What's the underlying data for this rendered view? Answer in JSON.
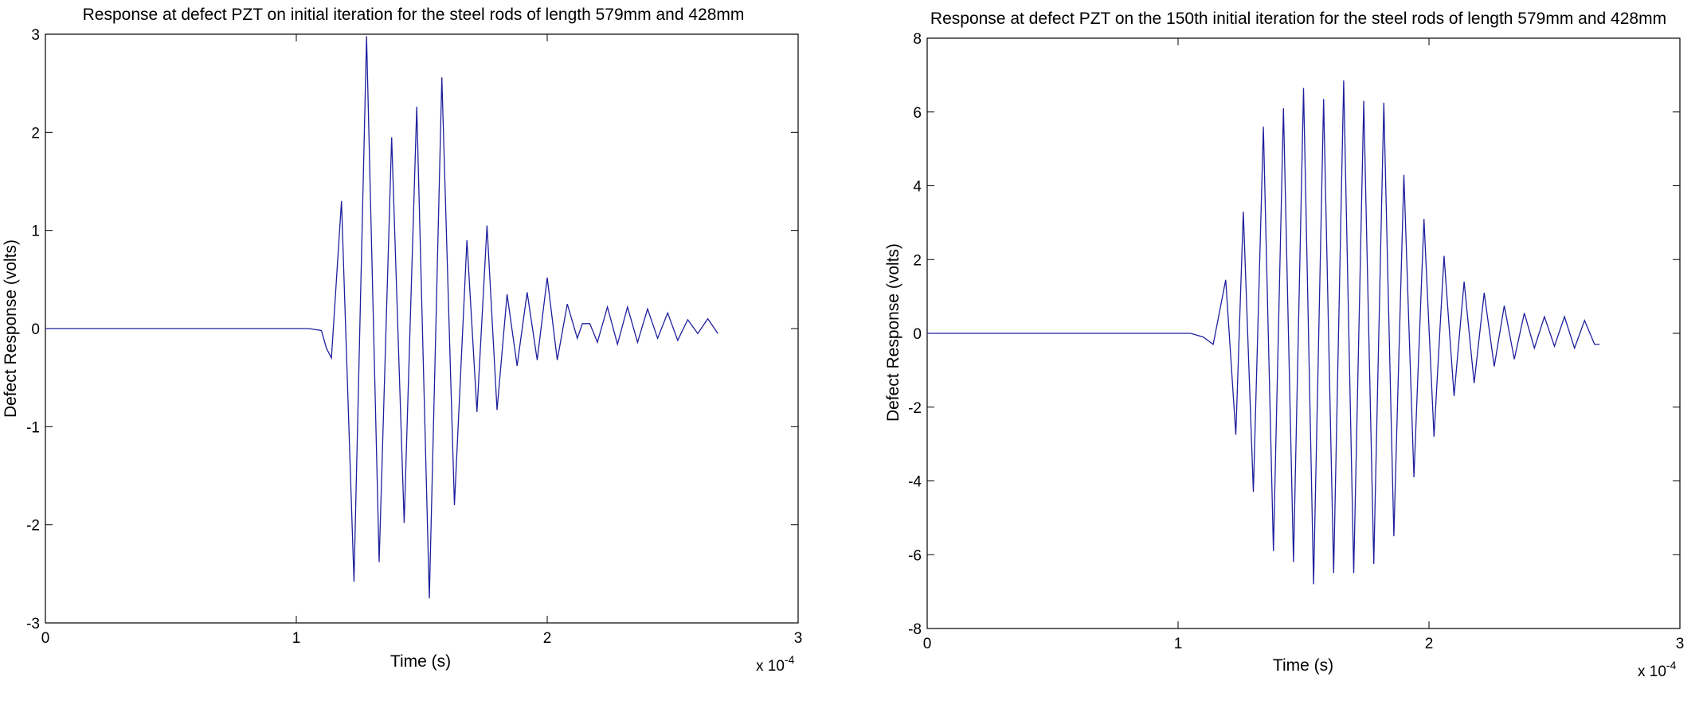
{
  "chart_data": [
    {
      "type": "line",
      "title": "Response at defect PZT on initial iteration for the steel rods of length 579mm and 428mm",
      "xlabel": "Time (s)",
      "ylabel": "Defect Response (volts)",
      "x_multiplier": "x 10",
      "x_multiplier_exp": "-4",
      "xlim": [
        0,
        3
      ],
      "ylim": [
        -3,
        3
      ],
      "xticks": [
        "0",
        "1",
        "2",
        "3"
      ],
      "yticks": [
        "-3",
        "-2",
        "-1",
        "0",
        "1",
        "2",
        "3"
      ],
      "grid": false,
      "color": "#1f1f9e",
      "series": [
        {
          "x": [
            0,
            1.0,
            1.05,
            1.1,
            1.12,
            1.14,
            1.18,
            1.23,
            1.28,
            1.33,
            1.38,
            1.43,
            1.48,
            1.53,
            1.58,
            1.63,
            1.68,
            1.72,
            1.76,
            1.8,
            1.84,
            1.88,
            1.92,
            1.96,
            2.0,
            2.04,
            2.08,
            2.12,
            2.14,
            2.17,
            2.2,
            2.24,
            2.28,
            2.32,
            2.36,
            2.4,
            2.44,
            2.48,
            2.52,
            2.56,
            2.6,
            2.64,
            2.68
          ],
          "y": [
            0,
            0,
            0,
            -0.02,
            -0.2,
            -0.3,
            1.3,
            -2.58,
            2.98,
            -2.38,
            1.95,
            -1.98,
            2.26,
            -2.75,
            2.56,
            -1.8,
            0.9,
            -0.85,
            1.05,
            -0.83,
            0.35,
            -0.38,
            0.37,
            -0.32,
            0.52,
            -0.32,
            0.25,
            -0.1,
            0.05,
            0.05,
            -0.14,
            0.22,
            -0.16,
            0.22,
            -0.14,
            0.2,
            -0.1,
            0.16,
            -0.12,
            0.09,
            -0.05,
            0.1,
            -0.05
          ]
        }
      ]
    },
    {
      "type": "line",
      "title": "Response at defect PZT on the 150th initial iteration for the steel rods of length 579mm and 428mm",
      "xlabel": "Time (s)",
      "ylabel": "Defect Response (volts)",
      "x_multiplier": "x 10",
      "x_multiplier_exp": "-4",
      "xlim": [
        0,
        3
      ],
      "ylim": [
        -8,
        8
      ],
      "xticks": [
        "0",
        "1",
        "2",
        "3"
      ],
      "yticks": [
        "-8",
        "-6",
        "-4",
        "-2",
        "0",
        "2",
        "4",
        "6",
        "8"
      ],
      "grid": false,
      "color": "#1f1f9e",
      "series": [
        {
          "x": [
            0,
            1.05,
            1.1,
            1.14,
            1.19,
            1.23,
            1.26,
            1.3,
            1.34,
            1.38,
            1.42,
            1.46,
            1.5,
            1.54,
            1.58,
            1.62,
            1.66,
            1.7,
            1.74,
            1.78,
            1.82,
            1.86,
            1.9,
            1.94,
            1.98,
            2.02,
            2.06,
            2.1,
            2.14,
            2.18,
            2.22,
            2.26,
            2.3,
            2.34,
            2.38,
            2.42,
            2.46,
            2.5,
            2.54,
            2.58,
            2.62,
            2.66,
            2.68
          ],
          "y": [
            0,
            0,
            -0.1,
            -0.3,
            1.45,
            -2.75,
            3.3,
            -4.3,
            5.6,
            -5.9,
            6.1,
            -6.2,
            6.65,
            -6.8,
            6.35,
            -6.5,
            6.85,
            -6.5,
            6.3,
            -6.25,
            6.25,
            -5.5,
            4.3,
            -3.9,
            3.1,
            -2.8,
            2.1,
            -1.7,
            1.4,
            -1.35,
            1.1,
            -0.9,
            0.75,
            -0.7,
            0.55,
            -0.4,
            0.45,
            -0.35,
            0.45,
            -0.4,
            0.35,
            -0.3,
            -0.3
          ]
        }
      ]
    }
  ]
}
